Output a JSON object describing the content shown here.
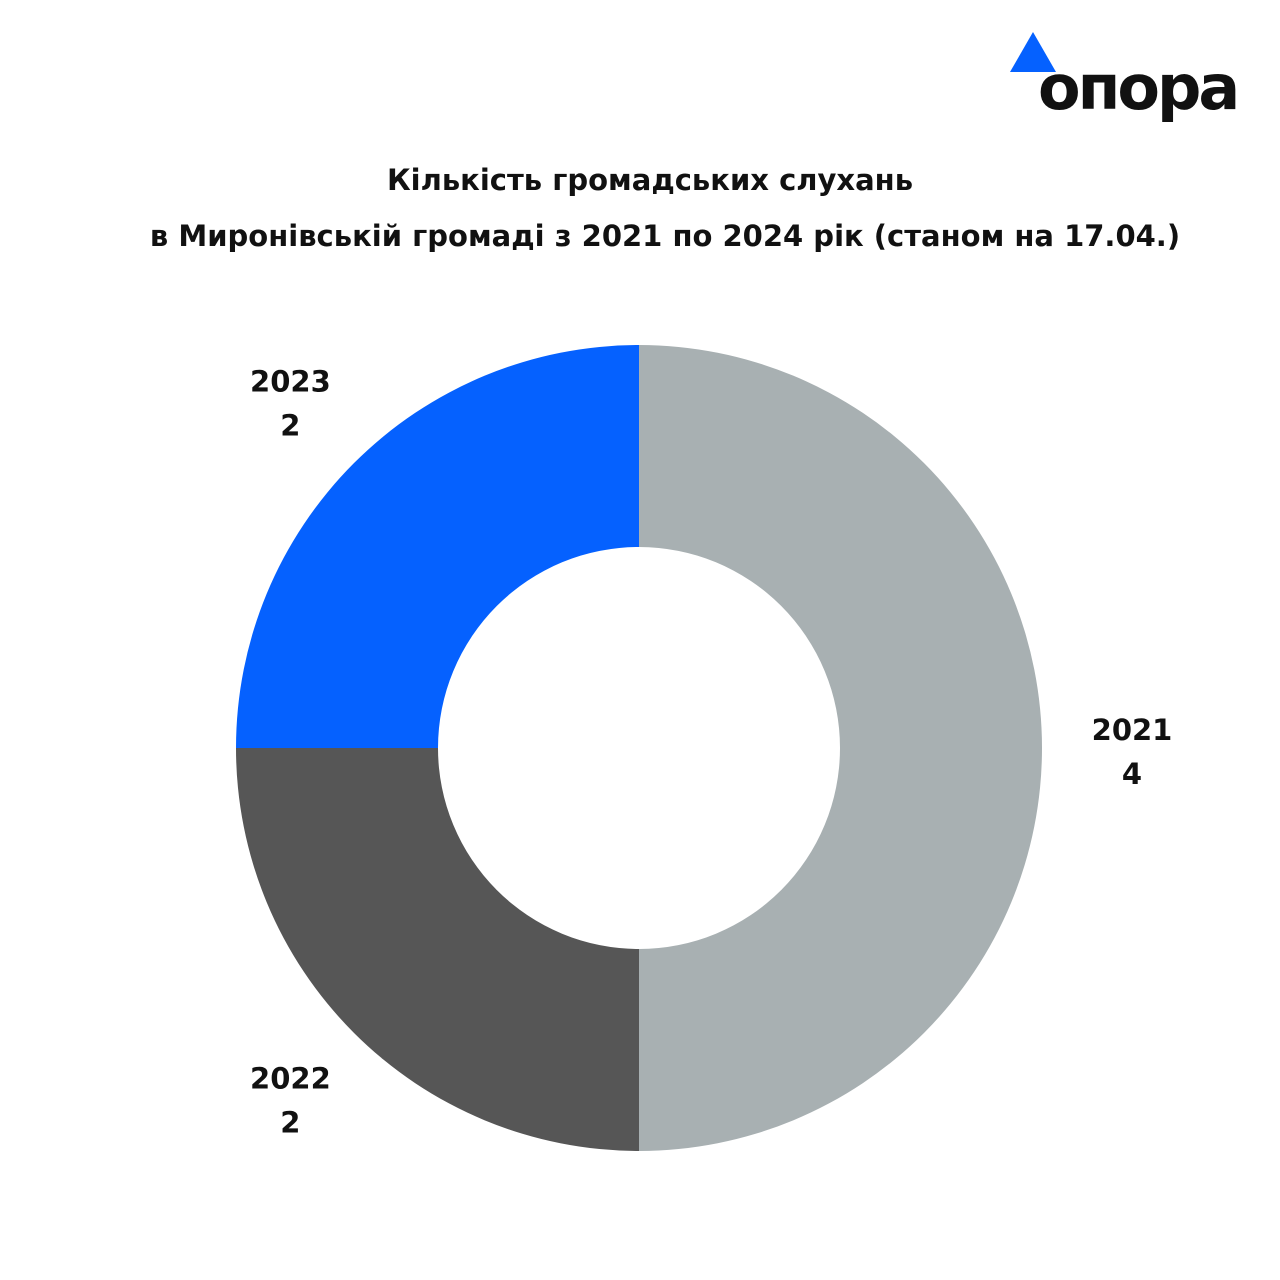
{
  "brand": {
    "wordmark": "опора",
    "accent_color": "#0561FF"
  },
  "title_lines": [
    "Кількість громадських слухань",
    "в Миронівській громаді з 2021 по 2024 рік (станом на 17.04.)"
  ],
  "chart_data": {
    "type": "pie",
    "style": "donut",
    "slices": [
      {
        "label": "2021",
        "value": 4,
        "color": "#A8B0B2"
      },
      {
        "label": "2022",
        "value": 2,
        "color": "#565656"
      },
      {
        "label": "2023",
        "value": 2,
        "color": "#0561FF"
      }
    ],
    "legend": "none",
    "data_labels": "outside"
  }
}
